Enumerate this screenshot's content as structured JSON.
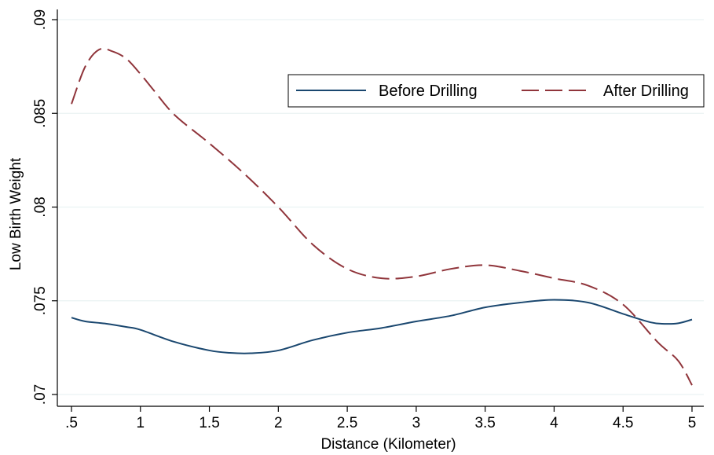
{
  "chart_data": {
    "type": "line",
    "title": "",
    "xlabel": "Distance (Kilometer)",
    "ylabel": "Low Birth Weight",
    "xlim": [
      0.5,
      5
    ],
    "ylim": [
      0.07,
      0.09
    ],
    "xticks": [
      0.5,
      1,
      1.5,
      2,
      2.5,
      3,
      3.5,
      4,
      4.5,
      5
    ],
    "xtick_labels": [
      ".5",
      "1",
      "1.5",
      "2",
      "2.5",
      "3",
      "3.5",
      "4",
      "4.5",
      "5"
    ],
    "yticks": [
      0.07,
      0.075,
      0.08,
      0.085,
      0.09
    ],
    "ytick_labels": [
      ".07",
      ".075",
      ".08",
      ".085",
      ".09"
    ],
    "grid": true,
    "legend_position": "top-right",
    "series": [
      {
        "name": "Before Drilling",
        "color": "#1a476f",
        "style": "solid",
        "x": [
          0.5,
          0.6,
          0.75,
          0.9,
          1.0,
          1.25,
          1.5,
          1.65,
          1.8,
          2.0,
          2.25,
          2.5,
          2.75,
          3.0,
          3.25,
          3.5,
          3.75,
          4.0,
          4.25,
          4.5,
          4.7,
          4.8,
          4.9,
          5.0
        ],
        "y": [
          0.0741,
          0.0739,
          0.07378,
          0.0736,
          0.07345,
          0.0728,
          0.07235,
          0.07222,
          0.0722,
          0.07235,
          0.0729,
          0.0733,
          0.07355,
          0.0739,
          0.0742,
          0.07465,
          0.0749,
          0.07505,
          0.0749,
          0.0743,
          0.07385,
          0.07377,
          0.0738,
          0.074
        ]
      },
      {
        "name": "After Drilling",
        "color": "#90353b",
        "style": "dashed",
        "x": [
          0.5,
          0.6,
          0.7,
          0.8,
          0.9,
          1.0,
          1.1,
          1.25,
          1.5,
          1.75,
          2.0,
          2.25,
          2.5,
          2.75,
          3.0,
          3.25,
          3.5,
          3.75,
          4.0,
          4.25,
          4.5,
          4.75,
          4.9,
          5.0
        ],
        "y": [
          0.0855,
          0.0875,
          0.0884,
          0.0883,
          0.0879,
          0.0871,
          0.0862,
          0.0849,
          0.0834,
          0.0818,
          0.08,
          0.078,
          0.0767,
          0.0762,
          0.0763,
          0.0767,
          0.0769,
          0.0766,
          0.0762,
          0.0758,
          0.0748,
          0.0728,
          0.0718,
          0.0705
        ]
      }
    ]
  }
}
